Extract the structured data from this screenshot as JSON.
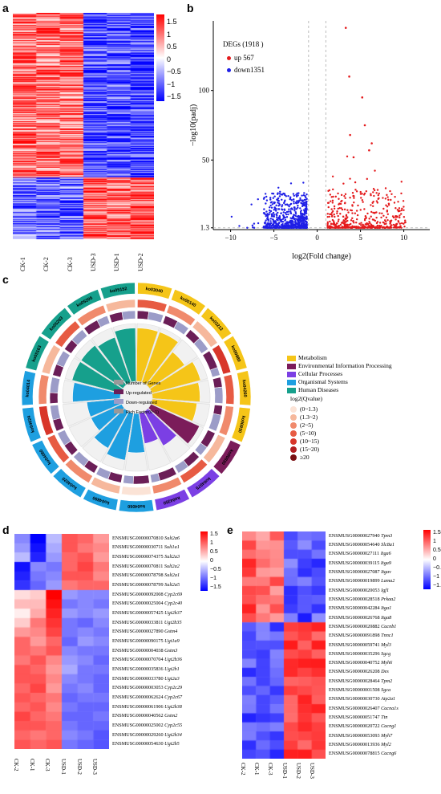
{
  "panels": {
    "a": "a",
    "b": "b",
    "c": "c",
    "d": "d",
    "e": "e"
  },
  "heatmap_a": {
    "columns": [
      "CK-1",
      "CK-2",
      "CK-3",
      "USD-3",
      "USD-1",
      "USD-2"
    ],
    "colorbar_ticks": [
      "1.5",
      "1",
      "0.5",
      "0",
      "−0.5",
      "−1",
      "−1.5"
    ]
  },
  "volcano": {
    "legend_title": "DEGs (1918 )",
    "up_label": "up 567",
    "down_label": "down1351",
    "ylabel": "−log10(padj)",
    "xlabel": "log2(Fold change)",
    "xticks": [
      "−10",
      "−5",
      "0",
      "5",
      "10"
    ],
    "yticks": [
      "1.3",
      "50",
      "100"
    ],
    "up_color": "#e41a1c",
    "down_color": "#1f1fe6"
  },
  "circos": {
    "sector_labels": [
      "ko03040",
      "ko00140",
      "ko03212",
      "ko00980",
      "ko04260",
      "ko00830",
      "ko00830",
      "ko04975",
      "ko04350",
      "ko04060",
      "ko04890",
      "ko04020",
      "ko04080",
      "ko04024",
      "ko04014",
      "ko05163",
      "ko05203",
      "ko05205",
      "ko05152"
    ],
    "center_legend": [
      "Number of Genes",
      "Up-regulated",
      "Down-regulated",
      "Rich Factor(0~1)"
    ],
    "category_legend": [
      {
        "label": "Metabolism",
        "color": "#f5c518"
      },
      {
        "label": "Environmental Information Processing",
        "color": "#7b1c5a"
      },
      {
        "label": "Cellular Processes",
        "color": "#7b3fe4"
      },
      {
        "label": "Organismal Systems",
        "color": "#1e9fe0"
      },
      {
        "label": "Human Diseases",
        "color": "#16a08c"
      }
    ],
    "qvalue_title": "log2(Qvalue)",
    "qvalue_legend": [
      {
        "label": "(0~1.3)",
        "color": "#fbe3d6"
      },
      {
        "label": "(1.3~2)",
        "color": "#f6b89c"
      },
      {
        "label": "(2~5)",
        "color": "#f08a6c"
      },
      {
        "label": "(5~10)",
        "color": "#e75b43"
      },
      {
        "label": "(10~15)",
        "color": "#d8362a"
      },
      {
        "label": "(15~20)",
        "color": "#b21e20"
      },
      {
        "label": "≥20",
        "color": "#7a0f12"
      }
    ]
  },
  "heatmap_d": {
    "columns": [
      "CK-2",
      "CK-1",
      "CK-3",
      "USD-1",
      "USD-2",
      "USD-3"
    ],
    "colorbar_ticks": [
      "1.5",
      "1",
      "0.5",
      "0",
      "−0.5",
      "−1",
      "−1.5"
    ],
    "genes": [
      {
        "id": "ENSMUSG00000070810",
        "sym": "Sult2a6"
      },
      {
        "id": "ENSMUSG00000030711",
        "sym": "Sult1a1"
      },
      {
        "id": "ENSMUSG00000074375",
        "sym": "Sult2a3"
      },
      {
        "id": "ENSMUSG00000070811",
        "sym": "Sult2a2"
      },
      {
        "id": "ENSMUSG00000078798",
        "sym": "Sult2a1"
      },
      {
        "id": "ENSMUSG00000078799",
        "sym": "Sult2a5"
      },
      {
        "id": "ENSMUSG00000092008",
        "sym": "Cyp2c69"
      },
      {
        "id": "ENSMUSG00000025004",
        "sym": "Cyp2c40"
      },
      {
        "id": "ENSMUSG00000057425",
        "sym": "Ugt2b37"
      },
      {
        "id": "ENSMUSG00000033811",
        "sym": "Ugt2b35"
      },
      {
        "id": "ENSMUSG00000027890",
        "sym": "Gstm4"
      },
      {
        "id": "ENSMUSG00000090175",
        "sym": "Ugt1a9"
      },
      {
        "id": "ENSMUSG00000004038",
        "sym": "Gstm3"
      },
      {
        "id": "ENSMUSG00000070704",
        "sym": "Ugt2b36"
      },
      {
        "id": "ENSMUSG00000035836",
        "sym": "Ugt2b1"
      },
      {
        "id": "ENSMUSG00000033780",
        "sym": "Ugt2a3"
      },
      {
        "id": "ENSMUSG00000003053",
        "sym": "Cyp2c29"
      },
      {
        "id": "ENSMUSG00000062624",
        "sym": "Cyp2c67"
      },
      {
        "id": "ENSMUSG00000061906",
        "sym": "Ugt2b38"
      },
      {
        "id": "ENSMUSG00000040562",
        "sym": "Gstm2"
      },
      {
        "id": "ENSMUSG00000025002",
        "sym": "Cyp2c55"
      },
      {
        "id": "ENSMUSG00000029260",
        "sym": "Ugt2b34"
      },
      {
        "id": "ENSMUSG00000054630",
        "sym": "Ugt2b5"
      }
    ]
  },
  "heatmap_e": {
    "columns": [
      "CK-2",
      "CK-1",
      "CK-3",
      "USD-1",
      "USD-2",
      "USD-3"
    ],
    "colorbar_ticks": [
      "1.5",
      "1",
      "0.5",
      "0",
      "−0.5",
      "−1",
      "−1.5"
    ],
    "genes": [
      {
        "id": "ENSMUSG00000027940",
        "sym": "Tpm3"
      },
      {
        "id": "ENSMUSG00000054640",
        "sym": "Slc8a1"
      },
      {
        "id": "ENSMUSG00000027111",
        "sym": "Itga6"
      },
      {
        "id": "ENSMUSG00000039115",
        "sym": "Itga9"
      },
      {
        "id": "ENSMUSG00000027087",
        "sym": "Itgav"
      },
      {
        "id": "ENSMUSG00000019899",
        "sym": "Lama2"
      },
      {
        "id": "ENSMUSG00000020053",
        "sym": "Igf1"
      },
      {
        "id": "ENSMUSG00000028518",
        "sym": "Prkaa2"
      },
      {
        "id": "ENSMUSG00000042284",
        "sym": "Itga1"
      },
      {
        "id": "ENSMUSG00000026768",
        "sym": "Itga8"
      },
      {
        "id": "ENSMUSG00000020882",
        "sym": "Cacnb1"
      },
      {
        "id": "ENSMUSG00000091898",
        "sym": "Tnnc1"
      },
      {
        "id": "ENSMUSG00000059741",
        "sym": "Myl3"
      },
      {
        "id": "ENSMUSG00000035296",
        "sym": "Sgcg"
      },
      {
        "id": "ENSMUSG00000040752",
        "sym": "Myh6"
      },
      {
        "id": "ENSMUSG00000026208",
        "sym": "Des"
      },
      {
        "id": "ENSMUSG00000028464",
        "sym": "Tpm2"
      },
      {
        "id": "ENSMUSG00000001508",
        "sym": "Sgca"
      },
      {
        "id": "ENSMUSG00000030730",
        "sym": "Atp2a1"
      },
      {
        "id": "ENSMUSG00000026407",
        "sym": "Cacna1s"
      },
      {
        "id": "ENSMUSG00000051747",
        "sym": "Ttn"
      },
      {
        "id": "ENSMUSG00000020722",
        "sym": "Cacng1"
      },
      {
        "id": "ENSMUSG00000053093",
        "sym": "Myh7"
      },
      {
        "id": "ENSMUSG00000013936",
        "sym": "Myl2"
      },
      {
        "id": "ENSMUSG00000078815",
        "sym": "Cacng6"
      }
    ]
  }
}
